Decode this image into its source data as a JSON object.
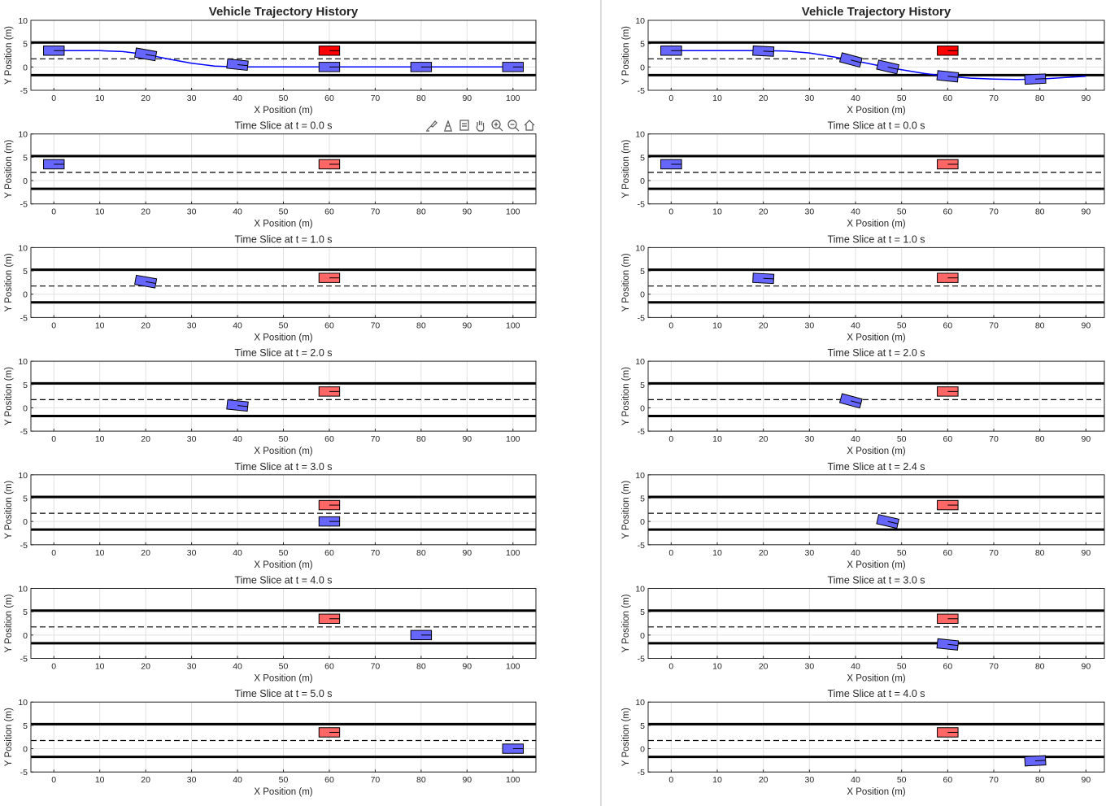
{
  "figures": [
    {
      "side": "left",
      "panels": [
        {
          "title": "Vehicle Trajectory History",
          "bold": true,
          "xlim": [
            -5,
            105
          ],
          "xticks": [
            0,
            10,
            20,
            30,
            40,
            50,
            60,
            70,
            80,
            90,
            100
          ],
          "trajectory": [
            [
              0,
              3.5
            ],
            [
              10,
              3.5
            ],
            [
              15,
              3.3
            ],
            [
              20,
              2.7
            ],
            [
              25,
              1.7
            ],
            [
              30,
              0.8
            ],
            [
              35,
              0.2
            ],
            [
              40,
              0
            ],
            [
              60,
              0
            ],
            [
              80,
              0
            ],
            [
              100,
              0
            ]
          ],
          "ego": [
            {
              "x": 0,
              "y": 3.5,
              "yaw": 0
            },
            {
              "x": 20,
              "y": 2.7,
              "yaw": -10
            },
            {
              "x": 40,
              "y": 0.5,
              "yaw": -6
            },
            {
              "x": 60,
              "y": 0,
              "yaw": 0
            },
            {
              "x": 80,
              "y": 0,
              "yaw": 0
            },
            {
              "x": 100,
              "y": 0,
              "yaw": 0
            }
          ],
          "obstacle": {
            "x": 60,
            "y": 3.5,
            "color": "#ff0000"
          }
        },
        {
          "title": "Time Slice at t = 0.0 s",
          "bold": false,
          "xlim": [
            -5,
            105
          ],
          "xticks": [
            0,
            10,
            20,
            30,
            40,
            50,
            60,
            70,
            80,
            90,
            100
          ],
          "ego": [
            {
              "x": 0,
              "y": 3.5,
              "yaw": 0
            }
          ],
          "obstacle": {
            "x": 60,
            "y": 3.5,
            "color": "#ff6666"
          }
        },
        {
          "title": "Time Slice at t = 1.0 s",
          "bold": false,
          "xlim": [
            -5,
            105
          ],
          "xticks": [
            0,
            10,
            20,
            30,
            40,
            50,
            60,
            70,
            80,
            90,
            100
          ],
          "ego": [
            {
              "x": 20,
              "y": 2.7,
              "yaw": -10
            }
          ],
          "obstacle": {
            "x": 60,
            "y": 3.5,
            "color": "#ff6666"
          }
        },
        {
          "title": "Time Slice at t = 2.0 s",
          "bold": false,
          "xlim": [
            -5,
            105
          ],
          "xticks": [
            0,
            10,
            20,
            30,
            40,
            50,
            60,
            70,
            80,
            90,
            100
          ],
          "ego": [
            {
              "x": 40,
              "y": 0.5,
              "yaw": -6
            }
          ],
          "obstacle": {
            "x": 60,
            "y": 3.5,
            "color": "#ff6666"
          }
        },
        {
          "title": "Time Slice at t = 3.0 s",
          "bold": false,
          "xlim": [
            -5,
            105
          ],
          "xticks": [
            0,
            10,
            20,
            30,
            40,
            50,
            60,
            70,
            80,
            90,
            100
          ],
          "ego": [
            {
              "x": 60,
              "y": 0,
              "yaw": 0
            }
          ],
          "obstacle": {
            "x": 60,
            "y": 3.5,
            "color": "#ff6666"
          }
        },
        {
          "title": "Time Slice at t = 4.0 s",
          "bold": false,
          "xlim": [
            -5,
            105
          ],
          "xticks": [
            0,
            10,
            20,
            30,
            40,
            50,
            60,
            70,
            80,
            90,
            100
          ],
          "ego": [
            {
              "x": 80,
              "y": 0,
              "yaw": 0
            }
          ],
          "obstacle": {
            "x": 60,
            "y": 3.5,
            "color": "#ff6666"
          }
        },
        {
          "title": "Time Slice at t = 5.0 s",
          "bold": false,
          "xlim": [
            -5,
            105
          ],
          "xticks": [
            0,
            10,
            20,
            30,
            40,
            50,
            60,
            70,
            80,
            90,
            100
          ],
          "ego": [
            {
              "x": 100,
              "y": 0,
              "yaw": 0
            }
          ],
          "obstacle": {
            "x": 60,
            "y": 3.5,
            "color": "#ff6666"
          }
        }
      ]
    },
    {
      "side": "right",
      "panels": [
        {
          "title": "Vehicle Trajectory History",
          "bold": true,
          "xlim": [
            -5,
            94
          ],
          "xticks": [
            0,
            10,
            20,
            30,
            40,
            50,
            60,
            70,
            80,
            90
          ],
          "trajectory": [
            [
              0,
              3.5
            ],
            [
              20,
              3.5
            ],
            [
              25,
              3.4
            ],
            [
              30,
              3.0
            ],
            [
              35,
              2.2
            ],
            [
              40,
              1.3
            ],
            [
              45,
              0.3
            ],
            [
              50,
              -0.6
            ],
            [
              55,
              -1.4
            ],
            [
              60,
              -2.0
            ],
            [
              65,
              -2.4
            ],
            [
              70,
              -2.6
            ],
            [
              75,
              -2.7
            ],
            [
              80,
              -2.6
            ],
            [
              85,
              -2.3
            ],
            [
              90,
              -2.0
            ]
          ],
          "ego": [
            {
              "x": 0,
              "y": 3.5,
              "yaw": 0
            },
            {
              "x": 20,
              "y": 3.4,
              "yaw": -3
            },
            {
              "x": 39,
              "y": 1.5,
              "yaw": -15
            },
            {
              "x": 47,
              "y": 0,
              "yaw": -13
            },
            {
              "x": 60,
              "y": -2,
              "yaw": -6
            },
            {
              "x": 79,
              "y": -2.6,
              "yaw": 3
            }
          ],
          "obstacle": {
            "x": 60,
            "y": 3.5,
            "color": "#ff0000"
          }
        },
        {
          "title": "Time Slice at t = 0.0 s",
          "bold": false,
          "xlim": [
            -5,
            94
          ],
          "xticks": [
            0,
            10,
            20,
            30,
            40,
            50,
            60,
            70,
            80,
            90
          ],
          "ego": [
            {
              "x": 0,
              "y": 3.5,
              "yaw": 0
            }
          ],
          "obstacle": {
            "x": 60,
            "y": 3.5,
            "color": "#ff6666"
          }
        },
        {
          "title": "Time Slice at t = 1.0 s",
          "bold": false,
          "xlim": [
            -5,
            94
          ],
          "xticks": [
            0,
            10,
            20,
            30,
            40,
            50,
            60,
            70,
            80,
            90
          ],
          "ego": [
            {
              "x": 20,
              "y": 3.4,
              "yaw": -3
            }
          ],
          "obstacle": {
            "x": 60,
            "y": 3.5,
            "color": "#ff6666"
          }
        },
        {
          "title": "Time Slice at t = 2.0 s",
          "bold": false,
          "xlim": [
            -5,
            94
          ],
          "xticks": [
            0,
            10,
            20,
            30,
            40,
            50,
            60,
            70,
            80,
            90
          ],
          "ego": [
            {
              "x": 39,
              "y": 1.5,
              "yaw": -15
            }
          ],
          "obstacle": {
            "x": 60,
            "y": 3.5,
            "color": "#ff6666"
          }
        },
        {
          "title": "Time Slice at t = 2.4 s",
          "bold": false,
          "xlim": [
            -5,
            94
          ],
          "xticks": [
            0,
            10,
            20,
            30,
            40,
            50,
            60,
            70,
            80,
            90
          ],
          "ego": [
            {
              "x": 47,
              "y": 0,
              "yaw": -13
            }
          ],
          "obstacle": {
            "x": 60,
            "y": 3.5,
            "color": "#ff6666"
          }
        },
        {
          "title": "Time Slice at t = 3.0 s",
          "bold": false,
          "xlim": [
            -5,
            94
          ],
          "xticks": [
            0,
            10,
            20,
            30,
            40,
            50,
            60,
            70,
            80,
            90
          ],
          "ego": [
            {
              "x": 60,
              "y": -2,
              "yaw": -6
            }
          ],
          "obstacle": {
            "x": 60,
            "y": 3.5,
            "color": "#ff6666"
          }
        },
        {
          "title": "Time Slice at t = 4.0 s",
          "bold": false,
          "xlim": [
            -5,
            94
          ],
          "xticks": [
            0,
            10,
            20,
            30,
            40,
            50,
            60,
            70,
            80,
            90
          ],
          "ego": [
            {
              "x": 79,
              "y": -2.6,
              "yaw": 3
            }
          ],
          "obstacle": {
            "x": 60,
            "y": 3.5,
            "color": "#ff6666"
          }
        }
      ]
    }
  ],
  "chart_data": {
    "type": "scatter",
    "xlabel": "X Position (m)",
    "ylabel": "Y Position (m)",
    "ylim": [
      -5,
      10
    ],
    "yticks": [
      -5,
      0,
      5,
      10
    ],
    "grid": true,
    "road": {
      "upper_edge_y": 5.25,
      "center_dashed_y": 1.75,
      "lower_edge_y": -1.75
    },
    "vehicle_size": {
      "length": 4.5,
      "width": 2.0
    },
    "colors": {
      "ego": "#6666ff",
      "ego_edge": "#000000",
      "trajectory": "#0000ff",
      "obstacle_history": "#ff0000",
      "obstacle_slice": "#ff6666"
    }
  },
  "toolbar": {
    "icons": [
      "brush-icon",
      "datatip-icon",
      "legend-icon",
      "pan-hand-icon",
      "zoom-in-icon",
      "zoom-out-icon",
      "home-icon"
    ]
  }
}
